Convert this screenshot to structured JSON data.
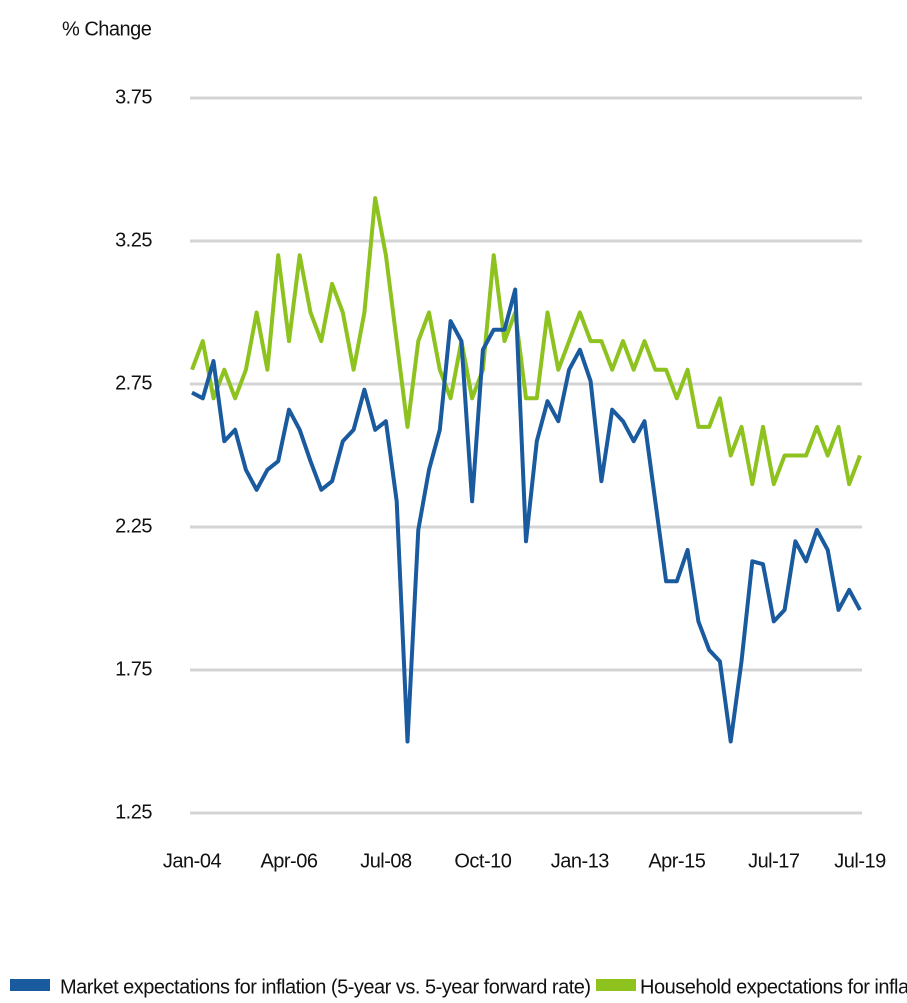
{
  "chart_data": {
    "type": "line",
    "y_axis_label": "% Change",
    "categories": [
      "Jan-04",
      null,
      null,
      null,
      null,
      null,
      null,
      null,
      null,
      "Apr-06",
      null,
      null,
      null,
      null,
      null,
      null,
      null,
      null,
      "Jul-08",
      null,
      null,
      null,
      null,
      null,
      null,
      null,
      null,
      "Oct-10",
      null,
      null,
      null,
      null,
      null,
      null,
      null,
      null,
      "Jan-13",
      null,
      null,
      null,
      null,
      null,
      null,
      null,
      null,
      "Apr-15",
      null,
      null,
      null,
      null,
      null,
      null,
      null,
      null,
      "Jul-17",
      null,
      null,
      null,
      null,
      null,
      null,
      null,
      "Jul-19"
    ],
    "series": [
      {
        "name": "Market expectations for inflation (5-year vs. 5-year forward rate)",
        "color": "#1a5a9e",
        "values": [
          2.72,
          2.7,
          2.83,
          2.55,
          2.59,
          2.45,
          2.38,
          2.45,
          2.48,
          2.66,
          2.59,
          2.48,
          2.38,
          2.41,
          2.55,
          2.59,
          2.73,
          2.59,
          2.62,
          2.34,
          1.5,
          2.24,
          2.45,
          2.59,
          2.97,
          2.9,
          2.34,
          2.87,
          2.94,
          2.94,
          3.08,
          2.2,
          2.55,
          2.69,
          2.62,
          2.8,
          2.87,
          2.76,
          2.41,
          2.66,
          2.62,
          2.55,
          2.62,
          2.34,
          2.06,
          2.06,
          2.17,
          1.92,
          1.82,
          1.78,
          1.5,
          1.78,
          2.13,
          2.12,
          1.92,
          1.96,
          2.2,
          2.13,
          2.24,
          2.17,
          1.96,
          2.03,
          1.96
        ]
      },
      {
        "name": "Household expectations for inflation",
        "color": "#8dc21f",
        "values": [
          2.8,
          2.9,
          2.7,
          2.8,
          2.7,
          2.8,
          3.0,
          2.8,
          3.2,
          2.9,
          3.2,
          3.0,
          2.9,
          3.1,
          3.0,
          2.8,
          3.0,
          3.4,
          3.2,
          2.9,
          2.6,
          2.9,
          3.0,
          2.8,
          2.7,
          2.9,
          2.7,
          2.8,
          3.2,
          2.9,
          3.0,
          2.7,
          2.7,
          3.0,
          2.8,
          2.9,
          3.0,
          2.9,
          2.9,
          2.8,
          2.9,
          2.8,
          2.9,
          2.8,
          2.8,
          2.7,
          2.8,
          2.6,
          2.6,
          2.7,
          2.5,
          2.6,
          2.4,
          2.6,
          2.4,
          2.5,
          2.5,
          2.5,
          2.6,
          2.5,
          2.6,
          2.4,
          2.5
        ]
      }
    ],
    "ylim": [
      1.25,
      3.75
    ],
    "yticks": [
      1.25,
      1.75,
      2.25,
      2.75,
      3.25,
      3.75
    ],
    "grid": true
  }
}
